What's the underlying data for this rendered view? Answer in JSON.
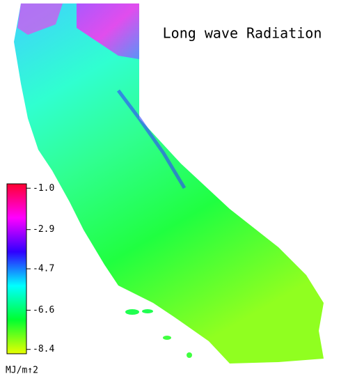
{
  "title": "Long wave Radiation",
  "colorbar": {
    "lim": [
      -0.8,
      -8.6
    ],
    "ticks": [
      {
        "value": -1.0,
        "label": "-1.0"
      },
      -2.9,
      -4.7,
      -6.6,
      -8.4
    ],
    "unit": "MJ/m↑2",
    "colors": [
      "#ff0030",
      "#ff00ff",
      "#3000ff",
      "#00ffff",
      "#00ff30",
      "#e8ff00"
    ]
  }
}
